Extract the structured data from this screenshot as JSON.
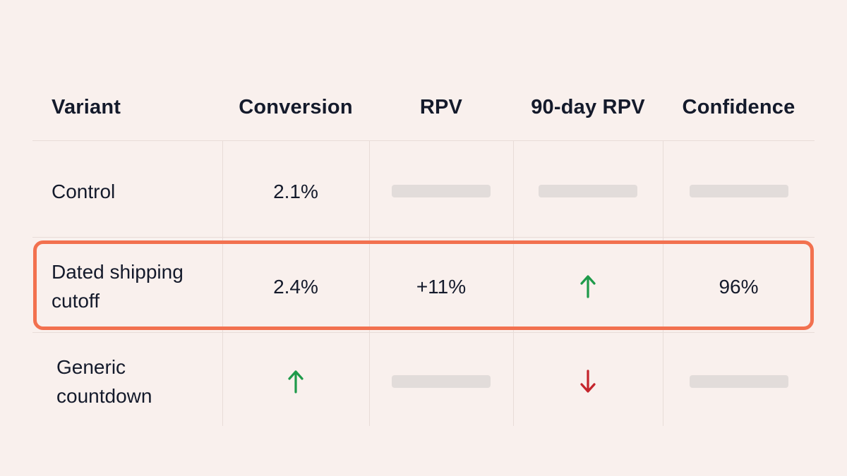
{
  "table": {
    "headers": {
      "variant": "Variant",
      "conversion": "Conversion",
      "rpv": "RPV",
      "rpv_90": "90-day RPV",
      "confidence": "Confidence"
    },
    "rows": [
      {
        "variant": "Control",
        "conversion": "2.1%",
        "rpv": null,
        "rpv_90": null,
        "confidence": null
      },
      {
        "variant": "Dated shipping\ncutoff",
        "conversion": "2.4%",
        "rpv": "+11%",
        "rpv_90": "up-arrow-icon",
        "confidence": "96%",
        "highlighted": true
      },
      {
        "variant": "Generic\ncountdown",
        "conversion": "up-arrow-icon",
        "rpv": null,
        "rpv_90": "down-arrow-icon",
        "confidence": null
      }
    ]
  },
  "colors": {
    "background": "#f9f0ed",
    "text": "#141a2b",
    "highlight_border": "#f2714f",
    "up_arrow": "#1e9a4a",
    "down_arrow": "#c4242b",
    "placeholder": "#e2dcda",
    "grid": "#e8dcd8"
  }
}
